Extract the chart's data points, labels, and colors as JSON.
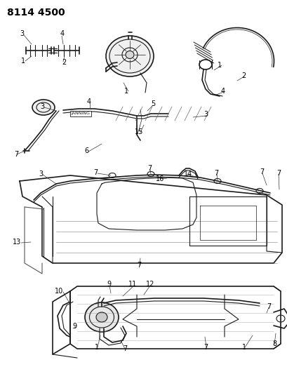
{
  "bg_color": "#ffffff",
  "line_color": "#1a1a1a",
  "label_color": "#000000",
  "fig_width": 4.1,
  "fig_height": 5.33,
  "dpi": 100,
  "title": "8114 4500"
}
